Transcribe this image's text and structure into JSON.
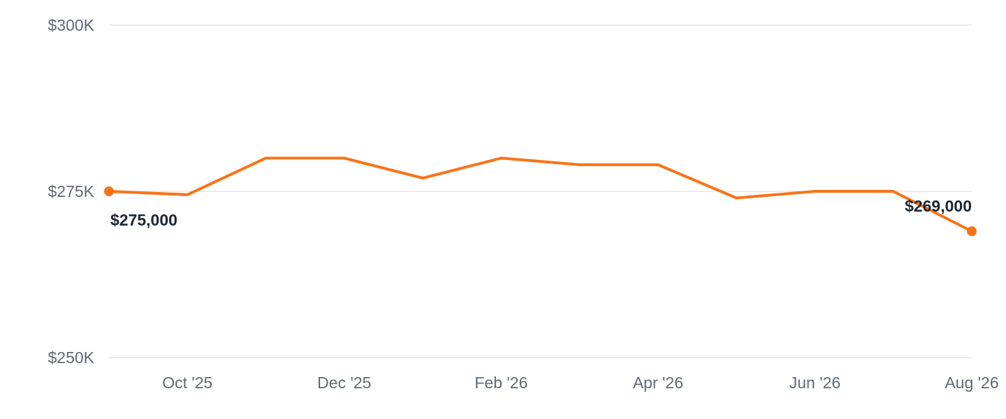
{
  "chart_data": {
    "type": "line",
    "title": "",
    "xlabel": "",
    "ylabel": "",
    "ylim": [
      250000,
      300000
    ],
    "y_ticks": [
      {
        "value": 300000,
        "label": "$300K"
      },
      {
        "value": 275000,
        "label": "$275K"
      },
      {
        "value": 250000,
        "label": "$250K"
      }
    ],
    "x": [
      "2025-09",
      "2025-10",
      "2025-11",
      "2025-12",
      "2026-01",
      "2026-02",
      "2026-03",
      "2026-04",
      "2026-05",
      "2026-06",
      "2026-07",
      "2026-08"
    ],
    "x_ticks": [
      {
        "x": "2025-10",
        "label": "Oct '25"
      },
      {
        "x": "2025-12",
        "label": "Dec '25"
      },
      {
        "x": "2026-02",
        "label": "Feb '26"
      },
      {
        "x": "2026-04",
        "label": "Apr '26"
      },
      {
        "x": "2026-06",
        "label": "Jun '26"
      },
      {
        "x": "2026-08",
        "label": "Aug '26"
      }
    ],
    "series": [
      {
        "values": [
          275000,
          274500,
          280000,
          280000,
          277000,
          280000,
          279000,
          279000,
          274000,
          275000,
          275000,
          269000
        ],
        "color": "#f97316"
      }
    ],
    "annotations": [
      {
        "x": "2025-09",
        "y": 275000,
        "label": "$275,000",
        "position": "below-right"
      },
      {
        "x": "2026-08",
        "y": 269000,
        "label": "$269,000",
        "position": "above-left"
      }
    ],
    "grid": true,
    "legend": "none"
  }
}
